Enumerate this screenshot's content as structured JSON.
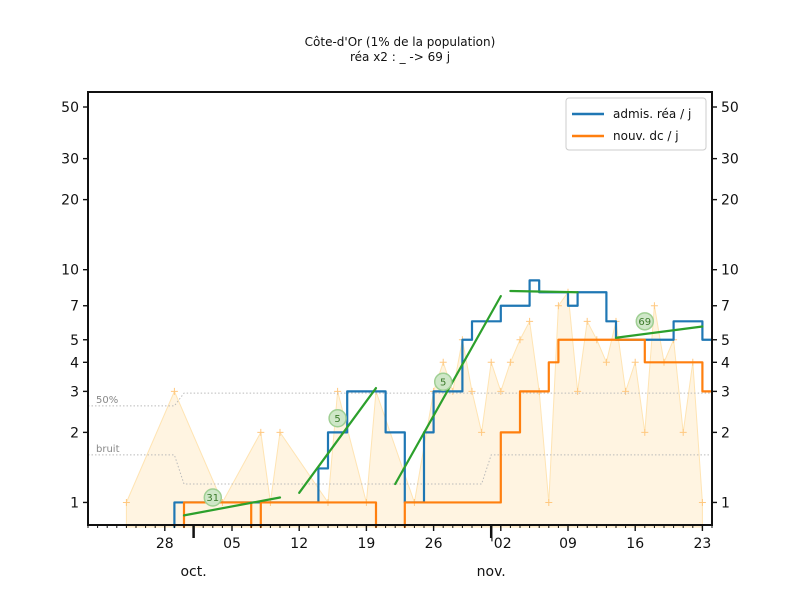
{
  "chart_data": {
    "type": "line",
    "title": "Côte-d'Or (1% de la population)",
    "subtitle": "réa x2 : _ -> 69 j",
    "y_scale": "log",
    "ylim": [
      0.8,
      58
    ],
    "y_ticks": [
      1,
      2,
      3,
      4,
      5,
      7,
      10,
      20,
      30,
      50
    ],
    "y_tick_labels": [
      "1",
      "2",
      "3",
      "4",
      "5",
      "7",
      "10",
      "20",
      "30",
      "50"
    ],
    "x_range": [
      "2020-09-20",
      "2020-11-24"
    ],
    "x_ticks": [
      "2020-09-28",
      "2020-10-05",
      "2020-10-12",
      "2020-10-19",
      "2020-10-26",
      "2020-11-02",
      "2020-11-09",
      "2020-11-16",
      "2020-11-23"
    ],
    "x_tick_labels": [
      "28",
      "05",
      "12",
      "19",
      "26",
      "'02",
      "09",
      "16",
      "23"
    ],
    "month_labels": [
      {
        "date": "2020-10-01",
        "label": "oct."
      },
      {
        "date": "2020-11-01",
        "label": "nov."
      }
    ],
    "grid": false,
    "legend_position": "top-right",
    "colors": {
      "rea": "#1f77b4",
      "dc": "#ff7f0e",
      "fit": "#2ca02c",
      "raw": "#ffe4b3",
      "ref": "#bbbbbb"
    },
    "reference_lines": [
      {
        "label": "50%",
        "points": [
          [
            "2020-09-20",
            2.6
          ],
          [
            "2020-09-29",
            2.6
          ],
          [
            "2020-09-30",
            2.95
          ],
          [
            "2020-11-24",
            2.95
          ]
        ]
      },
      {
        "label": "bruit",
        "points": [
          [
            "2020-09-20",
            1.6
          ],
          [
            "2020-09-29",
            1.6
          ],
          [
            "2020-09-30",
            1.2
          ],
          [
            "2020-10-31",
            1.2
          ],
          [
            "2020-11-01",
            1.6
          ],
          [
            "2020-11-24",
            1.6
          ]
        ]
      }
    ],
    "series": [
      {
        "name": "admis. réa / j",
        "key": "rea",
        "points": [
          [
            "2020-09-29",
            1
          ],
          [
            "2020-09-30",
            1
          ],
          [
            "2020-10-01",
            1
          ],
          [
            "2020-10-02",
            1
          ],
          [
            "2020-10-03",
            1
          ],
          [
            "2020-10-04",
            1
          ],
          [
            "2020-10-05",
            1
          ],
          [
            "2020-10-06",
            1
          ],
          [
            "2020-10-07",
            1
          ],
          [
            "2020-10-08",
            1
          ],
          [
            "2020-10-09",
            1
          ],
          [
            "2020-10-10",
            1
          ],
          [
            "2020-10-11",
            1
          ],
          [
            "2020-10-12",
            1
          ],
          [
            "2020-10-13",
            1
          ],
          [
            "2020-10-14",
            1.4
          ],
          [
            "2020-10-15",
            2
          ],
          [
            "2020-10-16",
            2
          ],
          [
            "2020-10-17",
            3
          ],
          [
            "2020-10-18",
            3
          ],
          [
            "2020-10-19",
            3
          ],
          [
            "2020-10-20",
            3
          ],
          [
            "2020-10-21",
            2
          ],
          [
            "2020-10-22",
            2
          ],
          [
            "2020-10-23",
            1
          ],
          [
            "2020-10-24",
            1
          ],
          [
            "2020-10-25",
            2
          ],
          [
            "2020-10-26",
            3
          ],
          [
            "2020-10-27",
            3
          ],
          [
            "2020-10-28",
            3
          ],
          [
            "2020-10-29",
            5
          ],
          [
            "2020-10-30",
            6
          ],
          [
            "2020-10-31",
            6
          ],
          [
            "2020-11-01",
            6
          ],
          [
            "2020-11-02",
            7
          ],
          [
            "2020-11-03",
            7
          ],
          [
            "2020-11-04",
            7
          ],
          [
            "2020-11-05",
            9
          ],
          [
            "2020-11-06",
            8
          ],
          [
            "2020-11-07",
            8
          ],
          [
            "2020-11-08",
            8
          ],
          [
            "2020-11-09",
            7
          ],
          [
            "2020-11-10",
            8
          ],
          [
            "2020-11-11",
            8
          ],
          [
            "2020-11-12",
            8
          ],
          [
            "2020-11-13",
            6
          ],
          [
            "2020-11-14",
            5
          ],
          [
            "2020-11-15",
            5
          ],
          [
            "2020-11-16",
            5
          ],
          [
            "2020-11-17",
            5
          ],
          [
            "2020-11-18",
            5
          ],
          [
            "2020-11-19",
            5
          ],
          [
            "2020-11-20",
            6
          ],
          [
            "2020-11-21",
            6
          ],
          [
            "2020-11-22",
            6
          ],
          [
            "2020-11-23",
            5
          ]
        ]
      },
      {
        "name": "nouv. dc / j",
        "key": "dc",
        "points": [
          [
            "2020-09-29",
            0
          ],
          [
            "2020-09-30",
            1
          ],
          [
            "2020-10-01",
            1
          ],
          [
            "2020-10-02",
            1
          ],
          [
            "2020-10-03",
            1
          ],
          [
            "2020-10-04",
            1
          ],
          [
            "2020-10-05",
            1
          ],
          [
            "2020-10-06",
            1
          ],
          [
            "2020-10-07",
            0
          ],
          [
            "2020-10-08",
            1
          ],
          [
            "2020-10-09",
            1
          ],
          [
            "2020-10-10",
            1
          ],
          [
            "2020-10-11",
            1
          ],
          [
            "2020-10-12",
            1
          ],
          [
            "2020-10-13",
            1
          ],
          [
            "2020-10-14",
            1
          ],
          [
            "2020-10-15",
            1
          ],
          [
            "2020-10-16",
            1
          ],
          [
            "2020-10-17",
            1
          ],
          [
            "2020-10-18",
            1
          ],
          [
            "2020-10-19",
            1
          ],
          [
            "2020-10-20",
            0
          ],
          [
            "2020-10-21",
            0
          ],
          [
            "2020-10-22",
            0
          ],
          [
            "2020-10-23",
            1
          ],
          [
            "2020-10-24",
            1
          ],
          [
            "2020-10-25",
            1
          ],
          [
            "2020-10-26",
            1
          ],
          [
            "2020-10-27",
            1
          ],
          [
            "2020-10-28",
            1
          ],
          [
            "2020-10-29",
            1
          ],
          [
            "2020-10-30",
            1
          ],
          [
            "2020-10-31",
            1
          ],
          [
            "2020-11-01",
            1
          ],
          [
            "2020-11-02",
            2
          ],
          [
            "2020-11-03",
            2
          ],
          [
            "2020-11-04",
            3
          ],
          [
            "2020-11-05",
            3
          ],
          [
            "2020-11-06",
            3
          ],
          [
            "2020-11-07",
            4
          ],
          [
            "2020-11-08",
            5
          ],
          [
            "2020-11-09",
            5
          ],
          [
            "2020-11-10",
            5
          ],
          [
            "2020-11-11",
            5
          ],
          [
            "2020-11-12",
            5
          ],
          [
            "2020-11-13",
            5
          ],
          [
            "2020-11-14",
            5
          ],
          [
            "2020-11-15",
            5
          ],
          [
            "2020-11-16",
            5
          ],
          [
            "2020-11-17",
            4
          ],
          [
            "2020-11-18",
            4
          ],
          [
            "2020-11-19",
            4
          ],
          [
            "2020-11-20",
            4
          ],
          [
            "2020-11-21",
            4
          ],
          [
            "2020-11-22",
            4
          ],
          [
            "2020-11-23",
            3
          ]
        ]
      }
    ],
    "raw_points": [
      [
        "2020-09-24",
        1
      ],
      [
        "2020-09-29",
        3
      ],
      [
        "2020-10-04",
        1
      ],
      [
        "2020-10-08",
        2
      ],
      [
        "2020-10-09",
        1
      ],
      [
        "2020-10-10",
        2
      ],
      [
        "2020-10-15",
        1
      ],
      [
        "2020-10-16",
        3
      ],
      [
        "2020-10-19",
        1
      ],
      [
        "2020-10-20",
        3
      ],
      [
        "2020-10-24",
        1
      ],
      [
        "2020-10-26",
        3
      ],
      [
        "2020-10-27",
        4
      ],
      [
        "2020-10-28",
        3
      ],
      [
        "2020-10-29",
        5
      ],
      [
        "2020-10-30",
        3
      ],
      [
        "2020-10-31",
        2
      ],
      [
        "2020-11-01",
        4
      ],
      [
        "2020-11-02",
        3
      ],
      [
        "2020-11-03",
        4
      ],
      [
        "2020-11-04",
        5
      ],
      [
        "2020-11-05",
        6
      ],
      [
        "2020-11-06",
        3
      ],
      [
        "2020-11-07",
        1
      ],
      [
        "2020-11-08",
        7
      ],
      [
        "2020-11-09",
        8
      ],
      [
        "2020-11-10",
        3
      ],
      [
        "2020-11-11",
        6
      ],
      [
        "2020-11-12",
        5
      ],
      [
        "2020-11-13",
        4
      ],
      [
        "2020-11-14",
        6
      ],
      [
        "2020-11-15",
        3
      ],
      [
        "2020-11-16",
        4
      ],
      [
        "2020-11-17",
        2
      ],
      [
        "2020-11-18",
        7
      ],
      [
        "2020-11-19",
        4
      ],
      [
        "2020-11-20",
        5
      ],
      [
        "2020-11-21",
        2
      ],
      [
        "2020-11-22",
        4
      ],
      [
        "2020-11-23",
        1
      ]
    ],
    "fit_segments": [
      {
        "label": "31",
        "label_at": [
          "2020-10-03",
          1.05
        ],
        "points": [
          [
            "2020-09-30",
            0.88
          ],
          [
            "2020-10-10",
            1.05
          ]
        ]
      },
      {
        "label": "5",
        "label_at": [
          "2020-10-16",
          2.3
        ],
        "points": [
          [
            "2020-10-12",
            1.1
          ],
          [
            "2020-10-20",
            3.1
          ]
        ]
      },
      {
        "label": "5",
        "label_at": [
          "2020-10-27",
          3.3
        ],
        "points": [
          [
            "2020-10-22",
            1.2
          ],
          [
            "2020-11-02",
            7.7
          ]
        ]
      },
      {
        "label": "",
        "label_at": null,
        "points": [
          [
            "2020-11-03",
            8.1
          ],
          [
            "2020-11-10",
            8.0
          ]
        ]
      },
      {
        "label": "69",
        "label_at": [
          "2020-11-17",
          6.0
        ],
        "points": [
          [
            "2020-11-14",
            5.1
          ],
          [
            "2020-11-23",
            5.7
          ]
        ]
      }
    ]
  }
}
